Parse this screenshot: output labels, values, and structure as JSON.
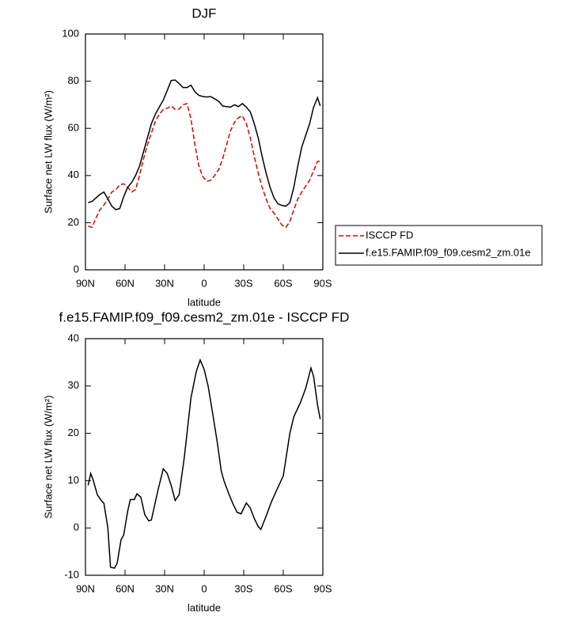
{
  "chart_data": [
    {
      "type": "line",
      "title": "DJF",
      "xlabel": "latitude",
      "ylabel": "Surface net LW flux (W/m²)",
      "x": [
        88,
        85,
        82,
        79,
        76,
        73,
        70,
        67,
        64,
        61,
        58,
        55,
        52,
        49,
        46,
        43,
        40,
        37,
        34,
        31,
        28,
        25,
        22,
        19,
        16,
        13,
        10,
        7,
        4,
        1,
        -2,
        -5,
        -8,
        -11,
        -14,
        -17,
        -20,
        -23,
        -26,
        -29,
        -32,
        -35,
        -38,
        -41,
        -44,
        -47,
        -50,
        -53,
        -56,
        -59,
        -62,
        -65,
        -68,
        -71,
        -74,
        -77,
        -80,
        -83,
        -86,
        -88
      ],
      "series": [
        {
          "name": "ISCCP FD",
          "color": "#e00000",
          "style": "dashed",
          "values": [
            18.5,
            18,
            22,
            25.5,
            27.5,
            30,
            33,
            34,
            36,
            36.5,
            35,
            33,
            34,
            40,
            47,
            53,
            58,
            63,
            66,
            68,
            68.5,
            69.5,
            68,
            68.2,
            70,
            70.5,
            64,
            53,
            44,
            39.5,
            37.5,
            38,
            40,
            42.5,
            47,
            53,
            59,
            62.5,
            64.5,
            65.3,
            62,
            56,
            48,
            41,
            35,
            30,
            26,
            24,
            21.5,
            19,
            18,
            20.5,
            25.5,
            30,
            33,
            35.5,
            38,
            42,
            46,
            46
          ]
        },
        {
          "name": "f.e15.FAMIP.f09_f09.cesm2_zm.01e",
          "color": "#000000",
          "style": "solid",
          "values": [
            28.5,
            29,
            30.5,
            32,
            33,
            30,
            27,
            25.5,
            26,
            31,
            35,
            37,
            40,
            44,
            50,
            56,
            62,
            66,
            69,
            72,
            76,
            80.3,
            80.5,
            79,
            77.3,
            77.3,
            78.3,
            75.5,
            74,
            73.5,
            73.3,
            73.5,
            72.5,
            71.5,
            69.5,
            69.2,
            69,
            70,
            69.2,
            70.5,
            69,
            67,
            62,
            56,
            48,
            41,
            35,
            30.5,
            28,
            27.3,
            27,
            28.5,
            35,
            44,
            52,
            57,
            62,
            69,
            73,
            69.5
          ]
        }
      ],
      "xlim": [
        90,
        -90
      ],
      "xticks": [
        {
          "value": 90,
          "label": "90N"
        },
        {
          "value": 60,
          "label": "60N"
        },
        {
          "value": 30,
          "label": "30N"
        },
        0,
        {
          "value": -30,
          "label": "30S"
        },
        {
          "value": -60,
          "label": "60S"
        },
        {
          "value": -90,
          "label": "90S"
        }
      ],
      "ylim": [
        0,
        100
      ],
      "yticks": [
        0,
        20,
        40,
        60,
        80,
        100
      ]
    },
    {
      "type": "line",
      "title": "f.e15.FAMIP.f09_f09.cesm2_zm.01e - ISCCP FD",
      "xlabel": "latitude",
      "ylabel": "Surface net LW flux (W/m²)",
      "x": [
        88,
        86,
        84,
        81,
        78,
        76,
        73,
        71,
        68,
        66,
        63,
        61,
        58,
        56,
        53,
        51,
        48,
        45,
        42,
        40,
        35,
        31,
        28,
        25,
        22,
        19,
        15,
        10,
        6,
        3,
        0,
        -3,
        -6,
        -10,
        -13,
        -15,
        -19,
        -22,
        -25,
        -28,
        -32,
        -35,
        -38,
        -41,
        -43,
        -47,
        -51,
        -55,
        -60,
        -65,
        -68,
        -73,
        -77,
        -81,
        -83,
        -86,
        -88
      ],
      "series": [
        {
          "color": "#000000",
          "style": "solid",
          "values": [
            9,
            11.5,
            10,
            7,
            5.8,
            5.2,
            0,
            -8.3,
            -8.5,
            -7.5,
            -2.5,
            -1.5,
            3.5,
            6,
            6,
            7.2,
            6.5,
            2.8,
            1.5,
            1.7,
            8,
            12.5,
            11.5,
            9,
            5.8,
            7,
            15,
            27.5,
            33,
            35.5,
            33.5,
            30,
            25,
            18,
            12,
            10,
            7,
            5,
            3.3,
            3,
            5.3,
            4.2,
            2,
            0.3,
            -0.3,
            2.5,
            5.5,
            8,
            11,
            20,
            23.5,
            26.5,
            29.5,
            33.8,
            32,
            26,
            23
          ]
        }
      ],
      "xlim": [
        90,
        -90
      ],
      "xticks": [
        {
          "value": 90,
          "label": "90N"
        },
        {
          "value": 60,
          "label": "60N"
        },
        {
          "value": 30,
          "label": "30N"
        },
        0,
        {
          "value": -30,
          "label": "30S"
        },
        {
          "value": -60,
          "label": "60S"
        },
        {
          "value": -90,
          "label": "90S"
        }
      ],
      "ylim": [
        -10,
        40
      ],
      "yticks": [
        -10,
        0,
        10,
        20,
        30,
        40
      ]
    }
  ]
}
